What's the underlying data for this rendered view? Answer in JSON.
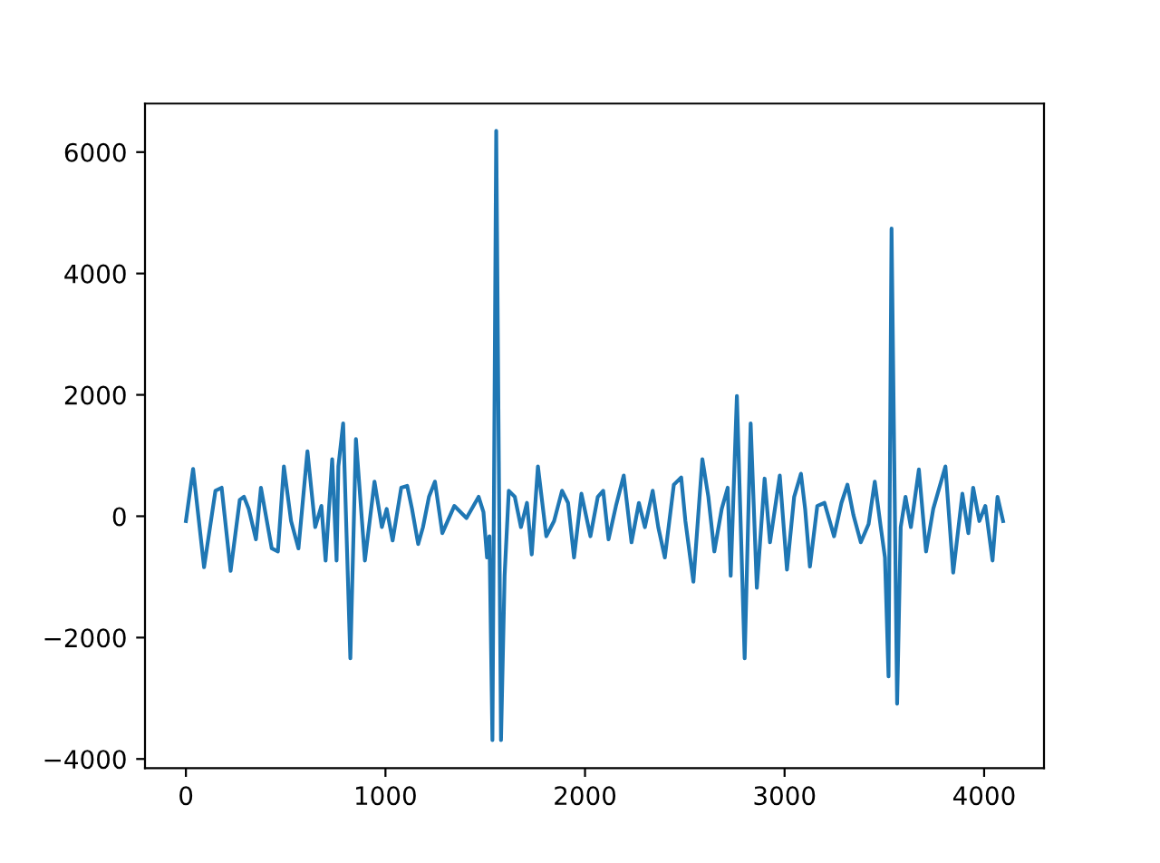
{
  "chart_data": {
    "type": "line",
    "x": [
      0,
      36,
      91,
      148,
      179,
      224,
      270,
      291,
      315,
      351,
      376,
      430,
      461,
      491,
      527,
      564,
      609,
      648,
      679,
      700,
      733,
      755,
      764,
      788,
      824,
      852,
      897,
      945,
      982,
      1006,
      1036,
      1079,
      1109,
      1133,
      1164,
      1188,
      1218,
      1248,
      1285,
      1345,
      1406,
      1467,
      1491,
      1509,
      1521,
      1536,
      1555,
      1579,
      1597,
      1618,
      1648,
      1679,
      1709,
      1733,
      1764,
      1806,
      1845,
      1885,
      1915,
      1945,
      1982,
      2027,
      2064,
      2091,
      2118,
      2155,
      2194,
      2233,
      2270,
      2300,
      2339,
      2367,
      2400,
      2445,
      2482,
      2503,
      2543,
      2588,
      2618,
      2648,
      2685,
      2715,
      2730,
      2761,
      2800,
      2830,
      2861,
      2900,
      2927,
      2976,
      3012,
      3048,
      3082,
      3103,
      3127,
      3164,
      3200,
      3248,
      3285,
      3315,
      3345,
      3382,
      3421,
      3452,
      3482,
      3503,
      3521,
      3536,
      3564,
      3582,
      3606,
      3633,
      3673,
      3709,
      3745,
      3806,
      3845,
      3891,
      3921,
      3945,
      3976,
      4006,
      4042,
      4067,
      4095
    ],
    "series": [
      {
        "color": "#1f77b4",
        "values": [
          -80,
          780,
          -840,
          420,
          470,
          -900,
          270,
          320,
          120,
          -380,
          470,
          -530,
          -580,
          820,
          -80,
          -530,
          1070,
          -180,
          170,
          -730,
          940,
          -730,
          820,
          1530,
          -2340,
          1270,
          -730,
          570,
          -180,
          120,
          -400,
          470,
          500,
          120,
          -460,
          -180,
          320,
          570,
          -280,
          170,
          -30,
          320,
          70,
          -680,
          -330,
          -3690,
          6350,
          -3690,
          -980,
          420,
          320,
          -180,
          220,
          -630,
          820,
          -330,
          -80,
          420,
          220,
          -680,
          370,
          -330,
          320,
          420,
          -380,
          170,
          670,
          -430,
          220,
          -180,
          420,
          -180,
          -680,
          520,
          640,
          -80,
          -1080,
          940,
          320,
          -580,
          120,
          470,
          -980,
          1980,
          -2340,
          1530,
          -1180,
          620,
          -430,
          670,
          -880,
          320,
          700,
          120,
          -830,
          170,
          220,
          -330,
          220,
          520,
          20,
          -430,
          -130,
          570,
          -180,
          -680,
          -2640,
          4740,
          -3090,
          -180,
          320,
          -180,
          770,
          -580,
          120,
          820,
          -930,
          370,
          -280,
          470,
          -80,
          170,
          -730,
          320,
          -80
        ]
      }
    ],
    "xlim": [
      -205,
      4300
    ],
    "ylim": [
      -4150,
      6800
    ],
    "xticks": [
      0,
      1000,
      2000,
      3000,
      4000
    ],
    "yticks": [
      -4000,
      -2000,
      0,
      2000,
      4000,
      6000
    ],
    "grid": false
  }
}
